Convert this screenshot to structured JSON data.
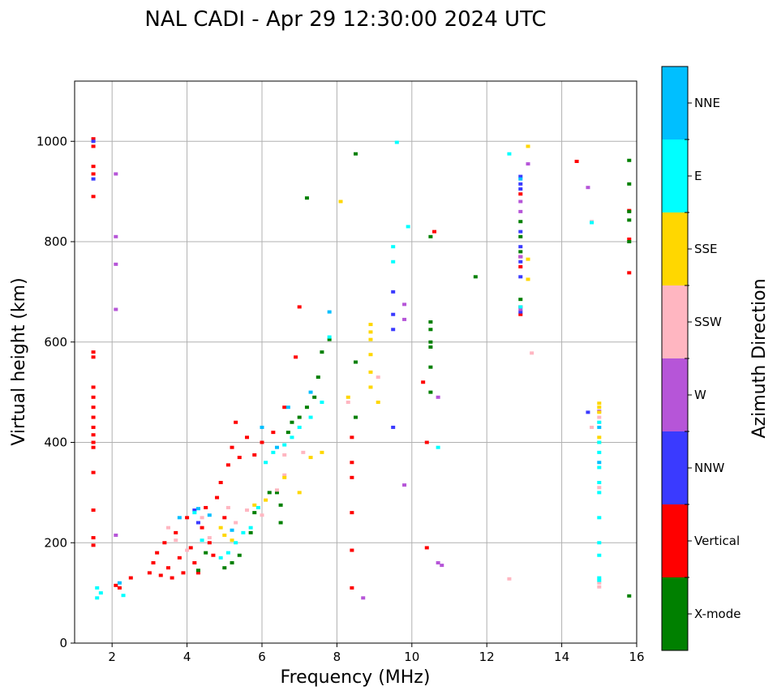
{
  "chart_data": {
    "type": "scatter",
    "title": "NAL CADI - Apr 29 12:30:00 2024 UTC",
    "xlabel": "Frequency (MHz)",
    "ylabel": "Virtual height (km)",
    "xlim": [
      1,
      16
    ],
    "ylim": [
      0,
      1120
    ],
    "xticks": [
      2,
      4,
      6,
      8,
      10,
      12,
      14,
      16
    ],
    "yticks": [
      0,
      200,
      400,
      600,
      800,
      1000
    ],
    "grid": true,
    "colorbar": {
      "title": "Azimuth Direction",
      "categories": [
        {
          "label": "X-mode",
          "color": "#008000"
        },
        {
          "label": "Vertical",
          "color": "#ff0000"
        },
        {
          "label": "NNW",
          "color": "#3a3aff"
        },
        {
          "label": "W",
          "color": "#b655d8"
        },
        {
          "label": "SSW",
          "color": "#ffb6c1"
        },
        {
          "label": "SSE",
          "color": "#ffd700"
        },
        {
          "label": "E",
          "color": "#00ffff"
        },
        {
          "label": "NNE",
          "color": "#00bfff"
        }
      ]
    },
    "series": [
      {
        "name": "Vertical",
        "points": [
          [
            1.5,
            1005
          ],
          [
            1.5,
            990
          ],
          [
            1.5,
            950
          ],
          [
            1.5,
            935
          ],
          [
            1.5,
            890
          ],
          [
            1.5,
            580
          ],
          [
            1.5,
            570
          ],
          [
            1.5,
            510
          ],
          [
            1.5,
            490
          ],
          [
            1.5,
            470
          ],
          [
            1.5,
            450
          ],
          [
            1.5,
            430
          ],
          [
            1.5,
            415
          ],
          [
            1.5,
            400
          ],
          [
            1.5,
            390
          ],
          [
            1.5,
            340
          ],
          [
            1.5,
            265
          ],
          [
            1.5,
            210
          ],
          [
            1.5,
            195
          ],
          [
            2.1,
            115
          ],
          [
            2.2,
            110
          ],
          [
            2.5,
            130
          ],
          [
            3.0,
            140
          ],
          [
            3.1,
            160
          ],
          [
            3.2,
            180
          ],
          [
            3.3,
            135
          ],
          [
            3.4,
            200
          ],
          [
            3.5,
            150
          ],
          [
            3.6,
            130
          ],
          [
            3.7,
            220
          ],
          [
            3.8,
            170
          ],
          [
            3.9,
            140
          ],
          [
            4.0,
            250
          ],
          [
            4.1,
            190
          ],
          [
            4.2,
            160
          ],
          [
            4.3,
            140
          ],
          [
            4.4,
            230
          ],
          [
            4.5,
            270
          ],
          [
            4.6,
            200
          ],
          [
            4.7,
            175
          ],
          [
            4.8,
            290
          ],
          [
            4.9,
            320
          ],
          [
            5.0,
            250
          ],
          [
            5.1,
            355
          ],
          [
            5.2,
            390
          ],
          [
            5.3,
            440
          ],
          [
            5.4,
            370
          ],
          [
            5.6,
            410
          ],
          [
            5.8,
            375
          ],
          [
            6.0,
            400
          ],
          [
            6.3,
            420
          ],
          [
            6.6,
            470
          ],
          [
            6.9,
            570
          ],
          [
            7.0,
            670
          ],
          [
            8.4,
            410
          ],
          [
            8.4,
            360
          ],
          [
            8.4,
            330
          ],
          [
            8.4,
            260
          ],
          [
            8.4,
            185
          ],
          [
            8.4,
            110
          ],
          [
            10.3,
            520
          ],
          [
            10.4,
            400
          ],
          [
            10.4,
            190
          ],
          [
            10.6,
            820
          ],
          [
            12.9,
            655
          ],
          [
            12.9,
            670
          ],
          [
            12.9,
            750
          ],
          [
            12.9,
            770
          ],
          [
            12.9,
            895
          ],
          [
            14.4,
            960
          ],
          [
            15.8,
            738
          ],
          [
            15.8,
            805
          ],
          [
            15.8,
            862
          ]
        ]
      },
      {
        "name": "X-mode",
        "points": [
          [
            4.3,
            145
          ],
          [
            4.5,
            180
          ],
          [
            5.0,
            150
          ],
          [
            5.2,
            160
          ],
          [
            5.4,
            175
          ],
          [
            5.7,
            220
          ],
          [
            5.8,
            260
          ],
          [
            6.2,
            300
          ],
          [
            6.4,
            300
          ],
          [
            6.5,
            240
          ],
          [
            6.5,
            275
          ],
          [
            6.7,
            420
          ],
          [
            6.8,
            440
          ],
          [
            7.0,
            450
          ],
          [
            7.2,
            470
          ],
          [
            7.4,
            490
          ],
          [
            7.5,
            530
          ],
          [
            7.6,
            580
          ],
          [
            7.8,
            605
          ],
          [
            7.2,
            887
          ],
          [
            8.5,
            450
          ],
          [
            8.5,
            560
          ],
          [
            8.5,
            975
          ],
          [
            10.5,
            810
          ],
          [
            10.5,
            640
          ],
          [
            10.5,
            625
          ],
          [
            10.5,
            600
          ],
          [
            10.5,
            590
          ],
          [
            10.5,
            550
          ],
          [
            10.5,
            500
          ],
          [
            11.7,
            730
          ],
          [
            12.9,
            685
          ],
          [
            12.9,
            780
          ],
          [
            12.9,
            810
          ],
          [
            12.9,
            840
          ],
          [
            15.8,
            94
          ],
          [
            15.8,
            800
          ],
          [
            15.8,
            843
          ],
          [
            15.8,
            860
          ],
          [
            15.8,
            915
          ],
          [
            15.8,
            962
          ]
        ]
      },
      {
        "name": "NNW",
        "points": [
          [
            1.5,
            1000
          ],
          [
            1.5,
            925
          ],
          [
            4.2,
            265
          ],
          [
            4.3,
            240
          ],
          [
            9.5,
            700
          ],
          [
            9.5,
            655
          ],
          [
            9.5,
            625
          ],
          [
            9.5,
            430
          ],
          [
            12.9,
            660
          ],
          [
            12.9,
            730
          ],
          [
            12.9,
            760
          ],
          [
            12.9,
            790
          ],
          [
            12.9,
            820
          ],
          [
            12.9,
            905
          ],
          [
            12.9,
            915
          ],
          [
            12.9,
            930
          ],
          [
            14.7,
            460
          ]
        ]
      },
      {
        "name": "W",
        "points": [
          [
            2.1,
            935
          ],
          [
            2.1,
            810
          ],
          [
            2.1,
            755
          ],
          [
            2.1,
            665
          ],
          [
            2.1,
            215
          ],
          [
            8.7,
            90
          ],
          [
            9.8,
            675
          ],
          [
            9.8,
            645
          ],
          [
            9.8,
            315
          ],
          [
            10.7,
            490
          ],
          [
            10.7,
            160
          ],
          [
            10.8,
            155
          ],
          [
            12.9,
            665
          ],
          [
            12.9,
            770
          ],
          [
            12.9,
            860
          ],
          [
            12.9,
            880
          ],
          [
            13.1,
            955
          ],
          [
            14.7,
            908
          ],
          [
            15.0,
            462
          ]
        ]
      },
      {
        "name": "SSW",
        "points": [
          [
            3.5,
            230
          ],
          [
            3.7,
            205
          ],
          [
            4.0,
            185
          ],
          [
            4.4,
            250
          ],
          [
            4.6,
            210
          ],
          [
            5.1,
            270
          ],
          [
            5.3,
            240
          ],
          [
            5.6,
            265
          ],
          [
            6.0,
            255
          ],
          [
            6.4,
            305
          ],
          [
            6.6,
            335
          ],
          [
            6.6,
            375
          ],
          [
            7.1,
            380
          ],
          [
            8.3,
            480
          ],
          [
            9.1,
            530
          ],
          [
            12.6,
            128
          ],
          [
            13.2,
            578
          ],
          [
            14.8,
            840
          ],
          [
            14.8,
            430
          ],
          [
            15.0,
            450
          ],
          [
            15.0,
            440
          ],
          [
            15.0,
            310
          ],
          [
            15.0,
            120
          ],
          [
            15.0,
            112
          ]
        ]
      },
      {
        "name": "SSE",
        "points": [
          [
            4.9,
            230
          ],
          [
            5.0,
            215
          ],
          [
            5.2,
            205
          ],
          [
            5.8,
            275
          ],
          [
            6.1,
            285
          ],
          [
            6.6,
            330
          ],
          [
            7.0,
            300
          ],
          [
            7.3,
            370
          ],
          [
            7.6,
            380
          ],
          [
            8.1,
            880
          ],
          [
            8.3,
            490
          ],
          [
            8.9,
            635
          ],
          [
            8.9,
            620
          ],
          [
            8.9,
            605
          ],
          [
            8.9,
            575
          ],
          [
            8.9,
            540
          ],
          [
            8.9,
            510
          ],
          [
            9.1,
            480
          ],
          [
            13.1,
            990
          ],
          [
            13.1,
            765
          ],
          [
            13.1,
            725
          ],
          [
            15.0,
            478
          ],
          [
            15.0,
            470
          ],
          [
            15.0,
            460
          ],
          [
            15.0,
            410
          ],
          [
            15.0,
            400
          ]
        ]
      },
      {
        "name": "E",
        "points": [
          [
            1.6,
            110
          ],
          [
            1.7,
            100
          ],
          [
            1.6,
            90
          ],
          [
            2.3,
            95
          ],
          [
            4.2,
            260
          ],
          [
            4.4,
            205
          ],
          [
            4.9,
            170
          ],
          [
            5.1,
            180
          ],
          [
            5.3,
            200
          ],
          [
            5.5,
            220
          ],
          [
            5.7,
            230
          ],
          [
            5.9,
            270
          ],
          [
            6.1,
            360
          ],
          [
            6.3,
            380
          ],
          [
            6.6,
            395
          ],
          [
            6.8,
            410
          ],
          [
            7.0,
            430
          ],
          [
            7.3,
            450
          ],
          [
            7.6,
            480
          ],
          [
            7.8,
            610
          ],
          [
            9.6,
            998
          ],
          [
            9.5,
            790
          ],
          [
            9.5,
            760
          ],
          [
            9.9,
            830
          ],
          [
            10.7,
            390
          ],
          [
            12.6,
            975
          ],
          [
            12.9,
            670
          ],
          [
            14.8,
            838
          ],
          [
            15.0,
            440
          ],
          [
            15.0,
            400
          ],
          [
            15.0,
            380
          ],
          [
            15.0,
            350
          ],
          [
            15.0,
            320
          ],
          [
            15.0,
            300
          ],
          [
            15.0,
            250
          ],
          [
            15.0,
            200
          ],
          [
            15.0,
            175
          ],
          [
            15.0,
            130
          ],
          [
            15.0,
            125
          ]
        ]
      },
      {
        "name": "NNE",
        "points": [
          [
            2.2,
            120
          ],
          [
            3.8,
            250
          ],
          [
            4.3,
            268
          ],
          [
            4.6,
            255
          ],
          [
            5.2,
            225
          ],
          [
            6.0,
            430
          ],
          [
            6.4,
            390
          ],
          [
            6.7,
            470
          ],
          [
            7.3,
            500
          ],
          [
            7.8,
            660
          ],
          [
            12.9,
            925
          ],
          [
            15.0,
            430
          ],
          [
            15.0,
            360
          ]
        ]
      }
    ]
  }
}
